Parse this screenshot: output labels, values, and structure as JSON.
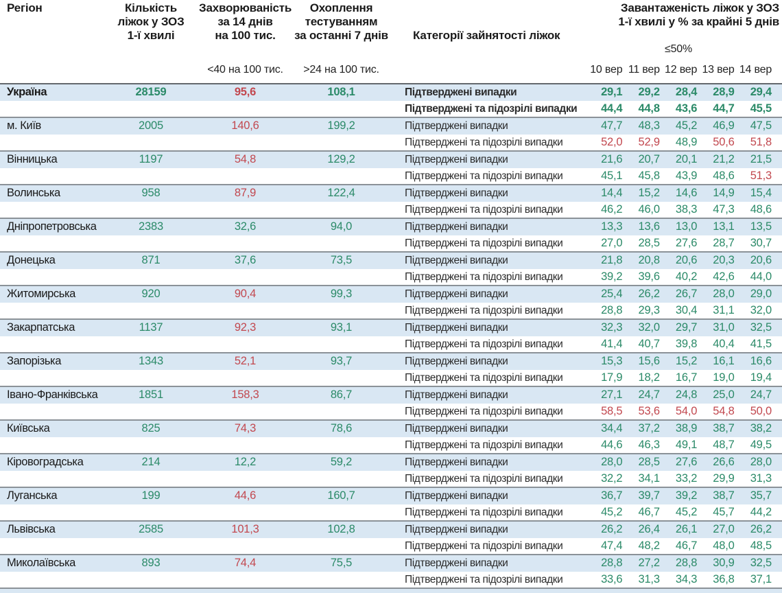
{
  "header": {
    "region_label": "Регіон",
    "beds_label": "Кількість\nліжок у ЗОЗ\n1-ї хвилі",
    "incidence_label": "Захворюваність\nза 14 днів\nна 100 тис.",
    "testing_label": "Охоплення\nтестуванням\nза останні 7 днів",
    "categories_label": "Категорії зайнятості ліжок",
    "load_label": "Завантаженість ліжок у ЗОЗ\n1-ї хвилі у % за крайні 5 днів",
    "incidence_threshold": "<40 на 100 тис.",
    "testing_threshold": ">24 на 100 тис.",
    "load_threshold": "≤50%",
    "dates": [
      "10 вер",
      "11 вер",
      "12 вер",
      "13 вер",
      "14 вер"
    ]
  },
  "row_labels": {
    "confirmed": "Підтверджені випадки",
    "confirmed_suspected": "Підтверджені та підозрілі випадки"
  },
  "colors": {
    "good_green": "#2b8a68",
    "alert_red": "#c2484f",
    "stripe_blue": "#d9e7f3"
  },
  "regions": [
    {
      "name": "Україна",
      "bold": true,
      "beds": "28159",
      "incidence": "95,6",
      "incidence_red": true,
      "testing": "108,1",
      "confirmed": {
        "values": [
          "29,1",
          "29,2",
          "28,4",
          "28,9",
          "29,4"
        ],
        "red": [
          false,
          false,
          false,
          false,
          false
        ]
      },
      "confirmed_suspected": {
        "values": [
          "44,4",
          "44,8",
          "43,6",
          "44,7",
          "45,5"
        ],
        "red": [
          false,
          false,
          false,
          false,
          false
        ]
      }
    },
    {
      "name": "м. Київ",
      "bold": false,
      "beds": "2005",
      "incidence": "140,6",
      "incidence_red": true,
      "testing": "199,2",
      "confirmed": {
        "values": [
          "47,7",
          "48,3",
          "45,2",
          "46,9",
          "47,5"
        ],
        "red": [
          false,
          false,
          false,
          false,
          false
        ]
      },
      "confirmed_suspected": {
        "values": [
          "52,0",
          "52,9",
          "48,9",
          "50,6",
          "51,8"
        ],
        "red": [
          true,
          true,
          false,
          true,
          true
        ]
      }
    },
    {
      "name": "Вінницька",
      "bold": false,
      "beds": "1197",
      "incidence": "54,8",
      "incidence_red": true,
      "testing": "129,2",
      "confirmed": {
        "values": [
          "21,6",
          "20,7",
          "20,1",
          "21,2",
          "21,5"
        ],
        "red": [
          false,
          false,
          false,
          false,
          false
        ]
      },
      "confirmed_suspected": {
        "values": [
          "45,1",
          "45,8",
          "43,9",
          "48,6",
          "51,3"
        ],
        "red": [
          false,
          false,
          false,
          false,
          true
        ]
      }
    },
    {
      "name": "Волинська",
      "bold": false,
      "beds": "958",
      "incidence": "87,9",
      "incidence_red": true,
      "testing": "122,4",
      "confirmed": {
        "values": [
          "14,4",
          "15,2",
          "14,6",
          "14,9",
          "15,4"
        ],
        "red": [
          false,
          false,
          false,
          false,
          false
        ]
      },
      "confirmed_suspected": {
        "values": [
          "46,2",
          "46,0",
          "38,3",
          "47,3",
          "48,6"
        ],
        "red": [
          false,
          false,
          false,
          false,
          false
        ]
      }
    },
    {
      "name": "Дніпропетровська",
      "bold": false,
      "beds": "2383",
      "incidence": "32,6",
      "incidence_red": false,
      "testing": "94,0",
      "confirmed": {
        "values": [
          "13,3",
          "13,6",
          "13,0",
          "13,1",
          "13,5"
        ],
        "red": [
          false,
          false,
          false,
          false,
          false
        ]
      },
      "confirmed_suspected": {
        "values": [
          "27,0",
          "28,5",
          "27,6",
          "28,7",
          "30,7"
        ],
        "red": [
          false,
          false,
          false,
          false,
          false
        ]
      }
    },
    {
      "name": "Донецька",
      "bold": false,
      "beds": "871",
      "incidence": "37,6",
      "incidence_red": false,
      "testing": "73,5",
      "confirmed": {
        "values": [
          "21,8",
          "20,8",
          "20,6",
          "20,3",
          "20,6"
        ],
        "red": [
          false,
          false,
          false,
          false,
          false
        ]
      },
      "confirmed_suspected": {
        "values": [
          "39,2",
          "39,6",
          "40,2",
          "42,6",
          "44,0"
        ],
        "red": [
          false,
          false,
          false,
          false,
          false
        ]
      }
    },
    {
      "name": "Житомирська",
      "bold": false,
      "beds": "920",
      "incidence": "90,4",
      "incidence_red": true,
      "testing": "99,3",
      "confirmed": {
        "values": [
          "25,4",
          "26,2",
          "26,7",
          "28,0",
          "29,0"
        ],
        "red": [
          false,
          false,
          false,
          false,
          false
        ]
      },
      "confirmed_suspected": {
        "values": [
          "28,8",
          "29,3",
          "30,4",
          "31,1",
          "32,0"
        ],
        "red": [
          false,
          false,
          false,
          false,
          false
        ]
      }
    },
    {
      "name": "Закарпатська",
      "bold": false,
      "beds": "1137",
      "incidence": "92,3",
      "incidence_red": true,
      "testing": "93,1",
      "confirmed": {
        "values": [
          "32,3",
          "32,0",
          "29,7",
          "31,0",
          "32,5"
        ],
        "red": [
          false,
          false,
          false,
          false,
          false
        ]
      },
      "confirmed_suspected": {
        "values": [
          "41,4",
          "40,7",
          "39,8",
          "40,4",
          "41,5"
        ],
        "red": [
          false,
          false,
          false,
          false,
          false
        ]
      }
    },
    {
      "name": "Запорізька",
      "bold": false,
      "beds": "1343",
      "incidence": "52,1",
      "incidence_red": true,
      "testing": "93,7",
      "confirmed": {
        "values": [
          "15,3",
          "15,6",
          "15,2",
          "16,1",
          "16,6"
        ],
        "red": [
          false,
          false,
          false,
          false,
          false
        ]
      },
      "confirmed_suspected": {
        "values": [
          "17,9",
          "18,2",
          "16,7",
          "19,0",
          "19,4"
        ],
        "red": [
          false,
          false,
          false,
          false,
          false
        ]
      }
    },
    {
      "name": "Івано-Франківська",
      "bold": false,
      "beds": "1851",
      "incidence": "158,3",
      "incidence_red": true,
      "testing": "86,7",
      "confirmed": {
        "values": [
          "27,1",
          "24,7",
          "24,8",
          "25,0",
          "24,7"
        ],
        "red": [
          false,
          false,
          false,
          false,
          false
        ]
      },
      "confirmed_suspected": {
        "values": [
          "58,5",
          "53,6",
          "54,0",
          "54,8",
          "50,0"
        ],
        "red": [
          true,
          true,
          true,
          true,
          true
        ]
      }
    },
    {
      "name": "Київська",
      "bold": false,
      "beds": "825",
      "incidence": "74,3",
      "incidence_red": true,
      "testing": "78,6",
      "confirmed": {
        "values": [
          "34,4",
          "37,2",
          "38,9",
          "38,7",
          "38,2"
        ],
        "red": [
          false,
          false,
          false,
          false,
          false
        ]
      },
      "confirmed_suspected": {
        "values": [
          "44,6",
          "46,3",
          "49,1",
          "48,7",
          "49,5"
        ],
        "red": [
          false,
          false,
          false,
          false,
          false
        ]
      }
    },
    {
      "name": "Кіровоградська",
      "bold": false,
      "beds": "214",
      "incidence": "12,2",
      "incidence_red": false,
      "testing": "59,2",
      "confirmed": {
        "values": [
          "28,0",
          "28,5",
          "27,6",
          "26,6",
          "28,0"
        ],
        "red": [
          false,
          false,
          false,
          false,
          false
        ]
      },
      "confirmed_suspected": {
        "values": [
          "32,2",
          "34,1",
          "33,2",
          "29,9",
          "31,3"
        ],
        "red": [
          false,
          false,
          false,
          false,
          false
        ]
      }
    },
    {
      "name": "Луганська",
      "bold": false,
      "beds": "199",
      "incidence": "44,6",
      "incidence_red": true,
      "testing": "160,7",
      "confirmed": {
        "values": [
          "36,7",
          "39,7",
          "39,2",
          "38,7",
          "35,7"
        ],
        "red": [
          false,
          false,
          false,
          false,
          false
        ]
      },
      "confirmed_suspected": {
        "values": [
          "45,2",
          "46,7",
          "45,2",
          "45,7",
          "44,2"
        ],
        "red": [
          false,
          false,
          false,
          false,
          false
        ]
      }
    },
    {
      "name": "Львівська",
      "bold": false,
      "beds": "2585",
      "incidence": "101,3",
      "incidence_red": true,
      "testing": "102,8",
      "confirmed": {
        "values": [
          "26,2",
          "26,4",
          "26,1",
          "27,0",
          "26,2"
        ],
        "red": [
          false,
          false,
          false,
          false,
          false
        ]
      },
      "confirmed_suspected": {
        "values": [
          "47,4",
          "48,2",
          "46,7",
          "48,0",
          "48,5"
        ],
        "red": [
          false,
          false,
          false,
          false,
          false
        ]
      }
    },
    {
      "name": "Миколаївська",
      "bold": false,
      "beds": "893",
      "incidence": "74,4",
      "incidence_red": true,
      "testing": "75,5",
      "confirmed": {
        "values": [
          "28,8",
          "27,2",
          "28,8",
          "30,9",
          "32,5"
        ],
        "red": [
          false,
          false,
          false,
          false,
          false
        ]
      },
      "confirmed_suspected": {
        "values": [
          "33,6",
          "31,3",
          "34,3",
          "36,8",
          "37,1"
        ],
        "red": [
          false,
          false,
          false,
          false,
          false
        ]
      }
    }
  ]
}
